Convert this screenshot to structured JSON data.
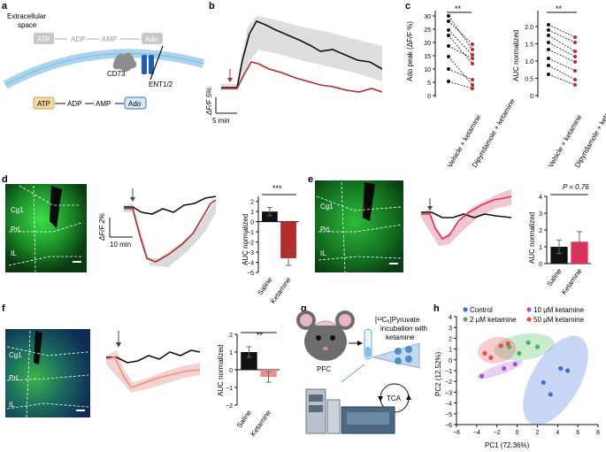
{
  "panels": {
    "a": {
      "label": "a",
      "space": [
        "Extracellular",
        "space"
      ],
      "extra": [
        "ATP",
        "ADP",
        "AMP",
        "Ado"
      ],
      "intra": [
        "ATP",
        "ADP",
        "AMP",
        "Ado"
      ],
      "enzyme": "CD73",
      "transporter": "ENT1/2"
    },
    "b": {
      "label": "b",
      "ylabel": "ΔF/F 5%",
      "xlabel": "5 min"
    },
    "c": {
      "label": "c",
      "sig": "**",
      "left": {
        "ylabel": "Ado peak (ΔF/F %)",
        "ticks": [
          "0",
          "5",
          "10",
          "15",
          "20",
          "25",
          "30"
        ],
        "xcat": [
          "Vehicle + ketamine",
          "Dipyridamole + ketamine"
        ]
      },
      "right": {
        "ylabel": "AUC normalized",
        "ticks": [
          "0",
          "0.5",
          "1.0",
          "1.5",
          "2.0"
        ],
        "xcat": [
          "Vehicle + ketamine",
          "Dipyridamole + ketamine"
        ]
      }
    },
    "d": {
      "label": "d",
      "regions": [
        "Cg1",
        "PrL",
        "IL"
      ],
      "ylabel": "ΔF/F 2%",
      "xlabel": "10 min",
      "sig": "***",
      "bar_ylabel": "AUC normalized",
      "bar_ticks": [
        "2",
        "1",
        "0",
        "−1",
        "−2",
        "−3",
        "−4",
        "−5"
      ],
      "cats": [
        "Saline",
        "Ketamine"
      ]
    },
    "e": {
      "label": "e",
      "regions": [
        "Cg1",
        "PrL",
        "IL"
      ],
      "pval": "P = 0.76",
      "bar_ylabel": "AUC normalized",
      "bar_ticks": [
        "0",
        "1",
        "2",
        "3",
        "4"
      ],
      "cats": [
        "Saline",
        "Ketamine"
      ]
    },
    "f": {
      "label": "f",
      "regions": [
        "Cg1",
        "PrL",
        "IL"
      ],
      "sig": "**",
      "bar_ylabel": "AUC normalized",
      "bar_ticks": [
        "2",
        "1",
        "0",
        "−1",
        "−2"
      ],
      "cats": [
        "Saline",
        "Ketamine"
      ]
    },
    "g": {
      "label": "g",
      "pfc": "PFC",
      "incubation": [
        "[¹³C₆]Pyruvate",
        "incubation with",
        "ketamine"
      ],
      "tca": "TCA"
    },
    "h": {
      "label": "h",
      "xlabel": "PC1 (72.36%)",
      "ylabel": "PC2 (12.52%)"
    }
  },
  "chart_data": [
    {
      "type": "bar",
      "panel": "d",
      "categories": [
        "Saline",
        "Ketamine"
      ],
      "values": [
        1.0,
        -3.6
      ],
      "errors": [
        0.4,
        0.7
      ],
      "ylim": [
        -5,
        2.5
      ],
      "colors": [
        "#111111",
        "#b52a2a"
      ]
    },
    {
      "type": "bar",
      "panel": "e",
      "categories": [
        "Saline",
        "Ketamine"
      ],
      "values": [
        1.0,
        1.3
      ],
      "errors": [
        0.4,
        0.6
      ],
      "ylim": [
        0,
        4
      ],
      "colors": [
        "#111111",
        "#e0305a"
      ]
    },
    {
      "type": "bar",
      "panel": "f",
      "categories": [
        "Saline",
        "Ketamine"
      ],
      "values": [
        1.0,
        -0.4
      ],
      "errors": [
        0.3,
        0.3
      ],
      "ylim": [
        -2,
        2
      ],
      "colors": [
        "#111111",
        "#e8908e"
      ]
    },
    {
      "type": "scatter",
      "panel": "h",
      "xlim": [
        -6,
        8
      ],
      "ylim": [
        -6,
        4
      ],
      "xticks": [
        -6,
        -4,
        -2,
        0,
        2,
        4,
        6,
        8
      ],
      "yticks": [
        -6,
        -5,
        -4,
        -3,
        -2,
        -1,
        0,
        1,
        2,
        3,
        4
      ],
      "series": [
        {
          "name": "Control",
          "color": "#3a6fdc",
          "points": [
            [
              2.6,
              -2.1
            ],
            [
              4.3,
              -0.8
            ],
            [
              3.3,
              -3.2
            ],
            [
              5.0,
              -1.0
            ]
          ]
        },
        {
          "name": "2 μM ketamine",
          "color": "#3dbb5a",
          "points": [
            [
              -0.8,
              1.2
            ],
            [
              1.1,
              1.6
            ],
            [
              0.2,
              0.6
            ],
            [
              2.0,
              1.2
            ]
          ]
        },
        {
          "name": "10 μM ketamine",
          "color": "#a05ac8",
          "points": [
            [
              -3.5,
              -1.5
            ],
            [
              -1.3,
              -0.8
            ],
            [
              -0.2,
              -0.4
            ]
          ]
        },
        {
          "name": "50 μM ketamine",
          "color": "#e34d4d",
          "points": [
            [
              -2.6,
              0.2
            ],
            [
              -1.6,
              1.3
            ],
            [
              -0.9,
              1.5
            ],
            [
              -3.2,
              0.6
            ]
          ]
        }
      ]
    }
  ]
}
